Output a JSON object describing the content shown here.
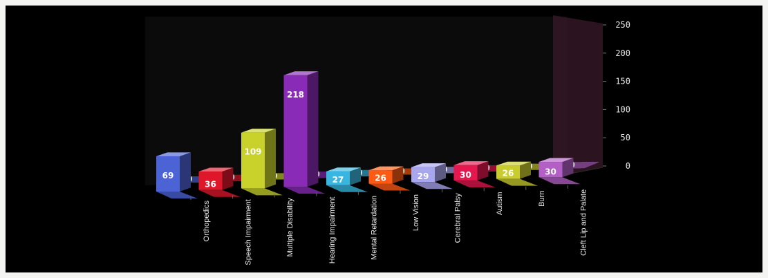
{
  "chart_data": {
    "type": "bar",
    "title": "",
    "xlabel": "",
    "ylabel": "",
    "ylim": [
      0,
      250
    ],
    "yticks": [
      0,
      50,
      100,
      150,
      200,
      250
    ],
    "grid": false,
    "legend": "none",
    "categories": [
      "Orthopedics",
      "Speech Impairment",
      "Multiple Disability",
      "Hearing Impairment",
      "Mental Retardation",
      "Low Vision",
      "Cerebral Palsy",
      "Autism",
      "Burn",
      "Cleft Lip and Palate"
    ],
    "series": [
      {
        "values": [
          69,
          36,
          109,
          218,
          27,
          26,
          29,
          30,
          26,
          30
        ]
      },
      {
        "values": [
          0,
          0,
          0,
          0,
          0,
          0,
          0,
          0,
          0,
          0
        ]
      }
    ],
    "colors": [
      "#4c63d6",
      "#e0162b",
      "#c8d22a",
      "#8a2bb8",
      "#39b6e0",
      "#ff5a14",
      "#a9a6f0",
      "#e5174f",
      "#c9cc2e",
      "#b35fc6"
    ]
  }
}
